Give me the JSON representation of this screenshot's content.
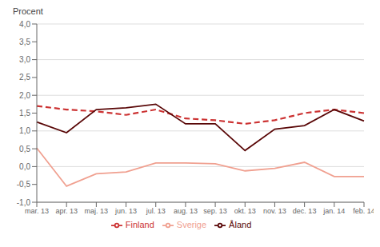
{
  "chart_data": {
    "type": "line",
    "y_label": "Procent",
    "categories": [
      "mar. 13",
      "apr. 13",
      "maj. 13",
      "jun. 13",
      "jul. 13",
      "aug. 13",
      "sep. 13",
      "okt. 13",
      "nov. 13",
      "dec. 13",
      "jan. 14",
      "feb. 14"
    ],
    "series": [
      {
        "name": "Sverige",
        "color": "#f0a090",
        "line_style": "solid",
        "values": [
          0.52,
          -0.55,
          -0.2,
          -0.15,
          0.1,
          0.1,
          0.08,
          -0.12,
          -0.05,
          0.12,
          -0.28,
          -0.28
        ]
      },
      {
        "name": "Finland",
        "color": "#cc3333",
        "line_style": "dashed",
        "values": [
          1.7,
          1.6,
          1.55,
          1.45,
          1.6,
          1.35,
          1.3,
          1.2,
          1.3,
          1.5,
          1.6,
          1.5
        ]
      },
      {
        "name": "Åland",
        "color": "#5a0808",
        "line_style": "solid",
        "values": [
          1.25,
          0.95,
          1.6,
          1.65,
          1.75,
          1.2,
          1.2,
          0.45,
          1.05,
          1.15,
          1.6,
          1.28
        ]
      }
    ],
    "ylim": [
      -1.0,
      4.0
    ],
    "yticks": [
      {
        "value": -1.0,
        "label": "-1,0"
      },
      {
        "value": -0.5,
        "label": "-0,5"
      },
      {
        "value": 0.0,
        "label": "0,0"
      },
      {
        "value": 0.5,
        "label": "0,5"
      },
      {
        "value": 1.0,
        "label": "1,0"
      },
      {
        "value": 1.5,
        "label": "1,5"
      },
      {
        "value": 2.0,
        "label": "2,0"
      },
      {
        "value": 2.5,
        "label": "2,5"
      },
      {
        "value": 3.0,
        "label": "3,0"
      },
      {
        "value": 3.5,
        "label": "3,5"
      },
      {
        "value": 4.0,
        "label": "4,0"
      }
    ],
    "grid": true,
    "legend": "bottom"
  }
}
